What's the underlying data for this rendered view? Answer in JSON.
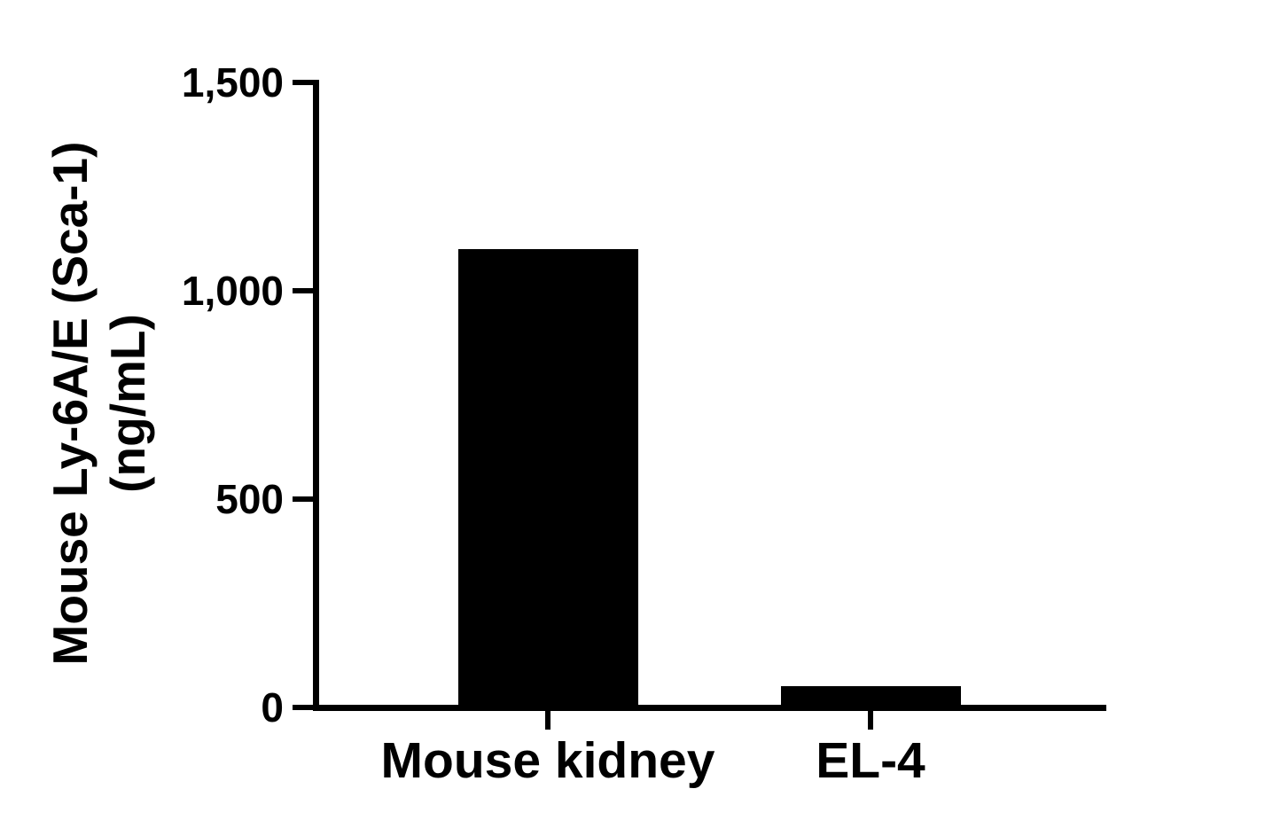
{
  "chart_data": {
    "type": "bar",
    "title": "",
    "categories": [
      "Mouse kidney",
      "EL-4"
    ],
    "values": [
      1100,
      50
    ],
    "series": [
      {
        "name": "Mouse Ly-6A/E (Sca-1) concentration",
        "values": [
          1100,
          50
        ]
      }
    ],
    "xlabel": "",
    "ylabel": "Mouse Ly-6A/E (Sca-1) (ng/mL)",
    "ylabel_line1": "Mouse Ly-6A/E (Sca-1)",
    "ylabel_line2": "(ng/mL)",
    "ylim": [
      0,
      1500
    ],
    "yticks": [
      {
        "value": 0,
        "label": "0"
      },
      {
        "value": 500,
        "label": "500"
      },
      {
        "value": 1000,
        "label": "1,000"
      },
      {
        "value": 1500,
        "label": "1,500"
      }
    ],
    "grid": "off",
    "legend": "none",
    "bar_color": "#000000",
    "axis_color": "#000000",
    "background_color": "#ffffff"
  }
}
